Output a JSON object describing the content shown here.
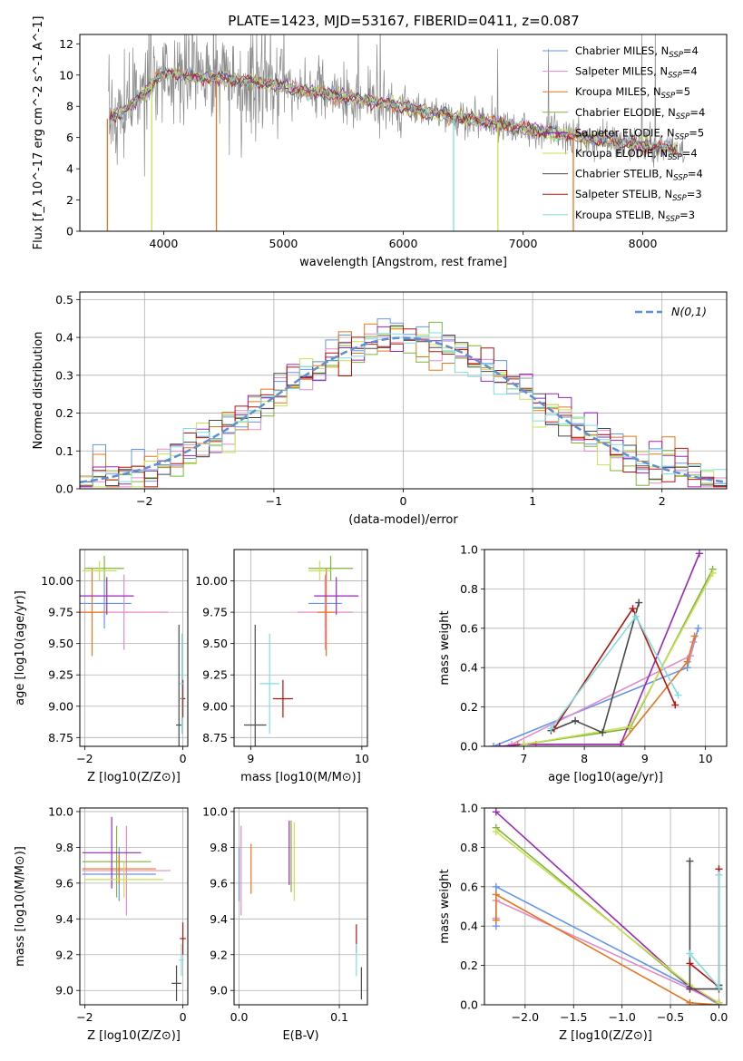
{
  "figure": {
    "title": "PLATE=1423, MJD=53167, FIBERID=0411, z=0.087"
  },
  "colors": {
    "blue": "#6495ed",
    "pink": "#e58ac8",
    "orange": "#e8741e",
    "green": "#7fb33b",
    "purple": "#9a27b8",
    "yellowgreen": "#c9e052",
    "dark": "#4a4a4a",
    "red": "#b5140e",
    "cyan": "#80dde0",
    "data": "#8a8a8a"
  },
  "chart_data": [
    {
      "id": "spectrum",
      "type": "line",
      "xlabel": "wavelength [Angstrom, rest frame]",
      "ylabel": "Flux [f_λ 10^-17 erg cm^-2 s^-1 A^-1]",
      "xlim": [
        3300,
        8700
      ],
      "ylim": [
        0,
        12.6
      ],
      "xticks": [
        4000,
        5000,
        6000,
        7000,
        8000
      ],
      "yticks": [
        0,
        2,
        4,
        6,
        8,
        10,
        12
      ],
      "grid": false,
      "legend_position": "top-right",
      "continuum": {
        "x": [
          3550,
          3650,
          3750,
          3850,
          3950,
          4050,
          4150,
          4300,
          4500,
          4700,
          4900,
          5100,
          5300,
          5500,
          5700,
          5900,
          6100,
          6300,
          6500,
          6700,
          6900,
          7100,
          7300,
          7500,
          7700,
          7900,
          8100,
          8300
        ],
        "y": [
          7.2,
          7.6,
          8.2,
          9.0,
          9.8,
          10.2,
          10.0,
          9.8,
          9.8,
          9.6,
          9.4,
          9.1,
          8.9,
          8.6,
          8.4,
          8.1,
          7.8,
          7.5,
          7.2,
          7.0,
          6.7,
          6.5,
          6.2,
          6.0,
          5.8,
          5.6,
          5.4,
          5.2
        ]
      },
      "series": [
        {
          "name": "Chabrier MILES, N_SSP=4",
          "color_key": "blue"
        },
        {
          "name": "Salpeter MILES, N_SSP=4",
          "color_key": "pink"
        },
        {
          "name": "Kroupa MILES, N_SSP=5",
          "color_key": "orange"
        },
        {
          "name": "Chabrier ELODIE, N_SSP=4",
          "color_key": "green"
        },
        {
          "name": "Salpeter ELODIE, N_SSP=5",
          "color_key": "purple"
        },
        {
          "name": "Kroupa ELODIE, N_SSP=4",
          "color_key": "yellowgreen"
        },
        {
          "name": "Chabrier STELIB, N_SSP=4",
          "color_key": "dark"
        },
        {
          "name": "Salpeter STELIB, N_SSP=3",
          "color_key": "red"
        },
        {
          "name": "Kroupa STELIB, N_SSP=3",
          "color_key": "cyan"
        }
      ],
      "absorption_spikes": [
        {
          "x": 3530,
          "color_key": "orange"
        },
        {
          "x": 3900,
          "color_key": "yellowgreen"
        },
        {
          "x": 4440,
          "color_key": "orange"
        },
        {
          "x": 6420,
          "color_key": "cyan"
        },
        {
          "x": 6790,
          "color_key": "yellowgreen"
        },
        {
          "x": 7420,
          "color_key": "orange"
        }
      ]
    },
    {
      "id": "residuals",
      "type": "step",
      "xlabel": "(data-model)/error",
      "ylabel": "Normed distribution",
      "xlim": [
        -2.5,
        2.5
      ],
      "ylim": [
        0,
        0.52
      ],
      "xticks": [
        -2,
        -1,
        0,
        1,
        2
      ],
      "yticks": [
        0.0,
        0.1,
        0.2,
        0.3,
        0.4,
        0.5
      ],
      "grid": true,
      "legend_position": "top-right",
      "reference_curve": {
        "name": "N(0,1)",
        "mean": 0,
        "sigma": 1
      },
      "bin_width": 0.1
    },
    {
      "id": "age_vs_Z",
      "type": "scatter",
      "xlabel": "Z [log10(Z/Z⊙)]",
      "ylabel": "age  [log10(age/yr)]",
      "xlim": [
        -2.1,
        0.1
      ],
      "ylim": [
        8.68,
        10.25
      ],
      "xticks": [
        -2,
        0
      ],
      "yticks": [
        8.75,
        9.0,
        9.25,
        9.5,
        9.75,
        10.0
      ],
      "grid": true,
      "points": [
        {
          "color_key": "blue",
          "x": -1.6,
          "y": 9.82,
          "xerr": 0.55,
          "yerr": 0.2
        },
        {
          "color_key": "pink",
          "x": -1.2,
          "y": 9.75,
          "xerr": 0.9,
          "yerr": 0.3
        },
        {
          "color_key": "orange",
          "x": -1.85,
          "y": 9.75,
          "xerr": 0.3,
          "yerr": 0.35
        },
        {
          "color_key": "green",
          "x": -1.6,
          "y": 10.1,
          "xerr": 0.4,
          "yerr": 0.1
        },
        {
          "color_key": "purple",
          "x": -1.55,
          "y": 9.88,
          "xerr": 0.55,
          "yerr": 0.15
        },
        {
          "color_key": "yellowgreen",
          "x": -1.7,
          "y": 10.08,
          "xerr": 0.35,
          "yerr": 0.08
        },
        {
          "color_key": "dark",
          "x": -0.08,
          "y": 8.85,
          "xerr": 0.06,
          "yerr": 0.8
        },
        {
          "color_key": "red",
          "x": 0.0,
          "y": 9.06,
          "xerr": 0.05,
          "yerr": 0.15
        },
        {
          "color_key": "cyan",
          "x": -0.02,
          "y": 9.18,
          "xerr": 0.04,
          "yerr": 0.4
        }
      ]
    },
    {
      "id": "age_vs_mass",
      "type": "scatter",
      "xlabel": "mass [log10(M/M⊙)]",
      "ylabel": "",
      "xlim": [
        8.85,
        10.05
      ],
      "ylim": [
        8.68,
        10.25
      ],
      "xticks": [
        9,
        10
      ],
      "yticks": [
        8.75,
        9.0,
        9.25,
        9.5,
        9.75,
        10.0
      ],
      "grid": true,
      "points": [
        {
          "color_key": "blue",
          "x": 9.67,
          "y": 9.82,
          "xerr": 0.15,
          "yerr": 0.2
        },
        {
          "color_key": "pink",
          "x": 9.67,
          "y": 9.75,
          "xerr": 0.25,
          "yerr": 0.3
        },
        {
          "color_key": "orange",
          "x": 9.68,
          "y": 9.75,
          "xerr": 0.08,
          "yerr": 0.35
        },
        {
          "color_key": "green",
          "x": 9.72,
          "y": 10.1,
          "xerr": 0.2,
          "yerr": 0.1
        },
        {
          "color_key": "purple",
          "x": 9.77,
          "y": 9.88,
          "xerr": 0.2,
          "yerr": 0.15
        },
        {
          "color_key": "yellowgreen",
          "x": 9.62,
          "y": 10.08,
          "xerr": 0.1,
          "yerr": 0.08
        },
        {
          "color_key": "dark",
          "x": 9.04,
          "y": 8.85,
          "xerr": 0.1,
          "yerr": 0.8
        },
        {
          "color_key": "red",
          "x": 9.29,
          "y": 9.06,
          "xerr": 0.09,
          "yerr": 0.15
        },
        {
          "color_key": "cyan",
          "x": 9.17,
          "y": 9.18,
          "xerr": 0.09,
          "yerr": 0.4
        }
      ]
    },
    {
      "id": "weight_vs_age",
      "type": "line",
      "xlabel": "age  [log10(age/yr)]",
      "ylabel": "mass weight",
      "xlim": [
        6.35,
        10.35
      ],
      "ylim": [
        0,
        1.0
      ],
      "xticks": [
        7,
        8,
        9,
        10
      ],
      "yticks": [
        0.0,
        0.2,
        0.4,
        0.6,
        0.8,
        1.0
      ],
      "grid": true,
      "series": [
        {
          "color_key": "blue",
          "x": [
            6.5,
            9.7,
            9.88
          ],
          "y": [
            0.0,
            0.4,
            0.6
          ]
        },
        {
          "color_key": "pink",
          "x": [
            6.8,
            9.75,
            9.8
          ],
          "y": [
            0.01,
            0.46,
            0.53
          ]
        },
        {
          "color_key": "orange",
          "x": [
            6.9,
            7.2,
            8.6,
            9.7,
            9.82
          ],
          "y": [
            0.01,
            0.01,
            0.01,
            0.43,
            0.56
          ]
        },
        {
          "color_key": "green",
          "x": [
            7.0,
            8.75,
            10.12
          ],
          "y": [
            0.01,
            0.09,
            0.9
          ]
        },
        {
          "color_key": "purple",
          "x": [
            6.6,
            7.0,
            8.6,
            9.9
          ],
          "y": [
            0.0,
            0.01,
            0.01,
            0.98
          ]
        },
        {
          "color_key": "yellowgreen",
          "x": [
            7.0,
            8.75,
            10.12
          ],
          "y": [
            0.01,
            0.1,
            0.88
          ]
        },
        {
          "color_key": "dark",
          "x": [
            7.45,
            7.85,
            8.3,
            8.9
          ],
          "y": [
            0.08,
            0.13,
            0.07,
            0.73
          ]
        },
        {
          "color_key": "red",
          "x": [
            7.5,
            8.8,
            9.5
          ],
          "y": [
            0.09,
            0.7,
            0.21
          ]
        },
        {
          "color_key": "cyan",
          "x": [
            7.45,
            8.85,
            9.55
          ],
          "y": [
            0.09,
            0.66,
            0.26
          ]
        }
      ]
    },
    {
      "id": "mass_vs_Z",
      "type": "scatter",
      "xlabel": "Z [log10(Z/Z⊙)]",
      "ylabel": "mass [log10(M/M⊙)]",
      "xlim": [
        -2.1,
        0.1
      ],
      "ylim": [
        8.92,
        10.02
      ],
      "xticks": [
        -2,
        0
      ],
      "yticks": [
        9.0,
        9.2,
        9.4,
        9.6,
        9.8,
        10.0
      ],
      "grid": true,
      "points": [
        {
          "color_key": "blue",
          "x": -1.3,
          "y": 9.65,
          "xerr": 0.75,
          "yerr": 0.15
        },
        {
          "color_key": "pink",
          "x": -1.15,
          "y": 9.67,
          "xerr": 0.9,
          "yerr": 0.25
        },
        {
          "color_key": "orange",
          "x": -1.3,
          "y": 9.68,
          "xerr": 0.75,
          "yerr": 0.08
        },
        {
          "color_key": "green",
          "x": -1.35,
          "y": 9.72,
          "xerr": 0.7,
          "yerr": 0.2
        },
        {
          "color_key": "purple",
          "x": -1.45,
          "y": 9.77,
          "xerr": 0.6,
          "yerr": 0.2
        },
        {
          "color_key": "yellowgreen",
          "x": -1.2,
          "y": 9.62,
          "xerr": 0.8,
          "yerr": 0.1
        },
        {
          "color_key": "dark",
          "x": -0.13,
          "y": 9.04,
          "xerr": 0.1,
          "yerr": 0.1
        },
        {
          "color_key": "red",
          "x": 0.0,
          "y": 9.29,
          "xerr": 0.06,
          "yerr": 0.09
        },
        {
          "color_key": "cyan",
          "x": -0.03,
          "y": 9.17,
          "xerr": 0.05,
          "yerr": 0.09
        }
      ]
    },
    {
      "id": "mass_vs_ebv",
      "type": "scatter",
      "xlabel": "E(B-V)",
      "ylabel": "",
      "xlim": [
        -0.005,
        0.128
      ],
      "ylim": [
        8.92,
        10.02
      ],
      "xticks": [
        0.0,
        0.1
      ],
      "yticks": [
        9.0,
        9.2,
        9.4,
        9.6,
        9.8,
        10.0
      ],
      "grid": true,
      "points": [
        {
          "color_key": "blue",
          "x": 0.0,
          "y": 9.65,
          "xerr": 0,
          "yerr": 0.15
        },
        {
          "color_key": "pink",
          "x": 0.002,
          "y": 9.67,
          "xerr": 0,
          "yerr": 0.25
        },
        {
          "color_key": "orange",
          "x": 0.012,
          "y": 9.68,
          "xerr": 0,
          "yerr": 0.14
        },
        {
          "color_key": "green",
          "x": 0.052,
          "y": 9.75,
          "xerr": 0,
          "yerr": 0.2
        },
        {
          "color_key": "purple",
          "x": 0.05,
          "y": 9.77,
          "xerr": 0,
          "yerr": 0.18
        },
        {
          "color_key": "yellowgreen",
          "x": 0.055,
          "y": 9.72,
          "xerr": 0,
          "yerr": 0.22
        },
        {
          "color_key": "dark",
          "x": 0.122,
          "y": 9.04,
          "xerr": 0,
          "yerr": 0.09
        },
        {
          "color_key": "red",
          "x": 0.117,
          "y": 9.29,
          "xerr": 0,
          "yerr": 0.08
        },
        {
          "color_key": "cyan",
          "x": 0.117,
          "y": 9.17,
          "xerr": 0,
          "yerr": 0.09
        }
      ]
    },
    {
      "id": "weight_vs_Z",
      "type": "line",
      "xlabel": "Z [log10(Z/Z⊙)]",
      "ylabel": "mass weight",
      "xlim": [
        -2.42,
        0.08
      ],
      "ylim": [
        0,
        1.0
      ],
      "xticks": [
        -2.0,
        -1.5,
        -1.0,
        -0.5,
        0.0
      ],
      "yticks": [
        0.0,
        0.2,
        0.4,
        0.6,
        0.8,
        1.0
      ],
      "grid": true,
      "series": [
        {
          "color_key": "blue",
          "x": [
            -2.3,
            -2.3,
            -0.3,
            0.0
          ],
          "y": [
            0.4,
            0.6,
            0.09,
            0.0
          ]
        },
        {
          "color_key": "pink",
          "x": [
            -2.3,
            -2.3,
            -0.3,
            0.0
          ],
          "y": [
            0.44,
            0.53,
            0.08,
            0.01
          ]
        },
        {
          "color_key": "orange",
          "x": [
            -2.3,
            -2.3,
            -0.3,
            0.0
          ],
          "y": [
            0.43,
            0.56,
            0.01,
            0.0
          ]
        },
        {
          "color_key": "green",
          "x": [
            -2.3,
            -0.3,
            0.0
          ],
          "y": [
            0.9,
            0.09,
            0.01
          ]
        },
        {
          "color_key": "purple",
          "x": [
            -2.3,
            -0.3,
            0.0
          ],
          "y": [
            0.98,
            0.09,
            0.01
          ]
        },
        {
          "color_key": "yellowgreen",
          "x": [
            -2.3,
            -0.3,
            0.0
          ],
          "y": [
            0.88,
            0.1,
            0.01
          ]
        },
        {
          "color_key": "dark",
          "x": [
            -0.3,
            -0.3,
            0.0,
            0.0
          ],
          "y": [
            0.73,
            0.08,
            0.08,
            0.1
          ]
        },
        {
          "color_key": "red",
          "x": [
            -0.3,
            0.0,
            0.0
          ],
          "y": [
            0.21,
            0.09,
            0.69
          ]
        },
        {
          "color_key": "cyan",
          "x": [
            -0.3,
            0.0,
            0.0
          ],
          "y": [
            0.26,
            0.09,
            0.66
          ]
        }
      ]
    }
  ]
}
